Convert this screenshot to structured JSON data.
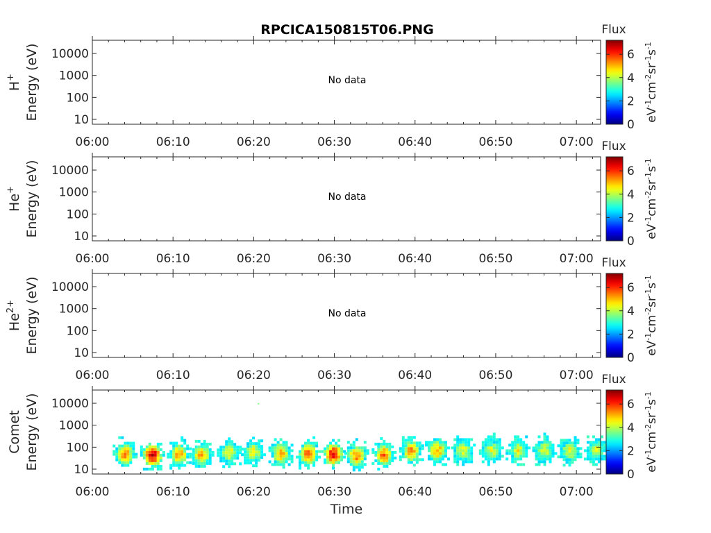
{
  "title": "RPCICA150815T06.PNG",
  "colorbar": {
    "label": "Flux",
    "unit_text": "eV",
    "unit_sup1": "-1",
    "unit_cm": "cm",
    "unit_sup2": "-2",
    "unit_sr": "sr",
    "unit_sup3": "-1",
    "unit_s": "s",
    "unit_sup4": "-1",
    "ticks": [
      "0",
      "2",
      "4",
      "6"
    ],
    "range": [
      0,
      7.2
    ],
    "colormap": [
      "#00008f",
      "#0000ff",
      "#00ffff",
      "#ffff00",
      "#ff0000",
      "#800000"
    ]
  },
  "no_data_text": "No data",
  "xlabel": "Time",
  "chart_data": [
    {
      "type": "heatmap",
      "species": "H",
      "species_sup": "+",
      "ylabel": "Energy (eV)",
      "x_ticks": [
        "06:00",
        "06:10",
        "06:20",
        "06:30",
        "06:40",
        "06:50",
        "07:00"
      ],
      "y_ticks": [
        "10",
        "100",
        "1000",
        "10000"
      ],
      "x_range_minutes": [
        0,
        63
      ],
      "y_range_eV": [
        6,
        40000
      ],
      "y_scale": "log",
      "has_data": true,
      "clusters": []
    },
    {
      "type": "heatmap",
      "species": "He",
      "species_sup": "+",
      "ylabel": "Energy (eV)",
      "x_ticks": [
        "06:00",
        "06:10",
        "06:20",
        "06:30",
        "06:40",
        "06:50",
        "07:00"
      ],
      "y_ticks": [
        "10",
        "100",
        "1000",
        "10000"
      ],
      "x_range_minutes": [
        0,
        63
      ],
      "y_range_eV": [
        6,
        40000
      ],
      "y_scale": "log",
      "has_data": false,
      "clusters": []
    },
    {
      "type": "heatmap",
      "species": "He",
      "species_sup": "2+",
      "ylabel": "Energy (eV)",
      "x_ticks": [
        "06:00",
        "06:10",
        "06:20",
        "06:30",
        "06:40",
        "06:50",
        "07:00"
      ],
      "y_ticks": [
        "10",
        "100",
        "1000",
        "10000"
      ],
      "x_range_minutes": [
        0,
        63
      ],
      "y_range_eV": [
        6,
        40000
      ],
      "y_scale": "log",
      "has_data": false,
      "clusters": []
    },
    {
      "type": "heatmap",
      "species": "Comet",
      "species_sup": "",
      "ylabel": "Energy (eV)",
      "x_ticks": [
        "06:00",
        "06:10",
        "06:20",
        "06:30",
        "06:40",
        "06:50",
        "07:00"
      ],
      "y_ticks": [
        "10",
        "100",
        "1000",
        "10000"
      ],
      "x_range_minutes": [
        0,
        63
      ],
      "y_range_eV": [
        6,
        40000
      ],
      "y_scale": "log",
      "has_data": true,
      "clusters": [
        {
          "t": 3.9,
          "e": 55,
          "flux": 5.4
        },
        {
          "t": 7.3,
          "e": 50,
          "flux": 6.6
        },
        {
          "t": 10.6,
          "e": 55,
          "flux": 5.2
        },
        {
          "t": 13.4,
          "e": 50,
          "flux": 5.1
        },
        {
          "t": 16.8,
          "e": 65,
          "flux": 4.6
        },
        {
          "t": 19.8,
          "e": 70,
          "flux": 4.5
        },
        {
          "t": 23.2,
          "e": 60,
          "flux": 5.2
        },
        {
          "t": 26.6,
          "e": 55,
          "flux": 5.7
        },
        {
          "t": 29.7,
          "e": 55,
          "flux": 6.3
        },
        {
          "t": 32.6,
          "e": 45,
          "flux": 5.4
        },
        {
          "t": 36.0,
          "e": 50,
          "flux": 5.6
        },
        {
          "t": 39.4,
          "e": 75,
          "flux": 5.3
        },
        {
          "t": 42.6,
          "e": 80,
          "flux": 5.1
        },
        {
          "t": 45.8,
          "e": 80,
          "flux": 4.3
        },
        {
          "t": 49.3,
          "e": 80,
          "flux": 4.2
        },
        {
          "t": 52.6,
          "e": 80,
          "flux": 4.4
        },
        {
          "t": 55.9,
          "e": 80,
          "flux": 4.3
        },
        {
          "t": 59.0,
          "e": 75,
          "flux": 4.4
        },
        {
          "t": 62.3,
          "e": 80,
          "flux": 4.3
        }
      ],
      "isolated_points": [
        {
          "t": 20.6,
          "e": 9500,
          "flux": 3.6
        }
      ]
    }
  ]
}
